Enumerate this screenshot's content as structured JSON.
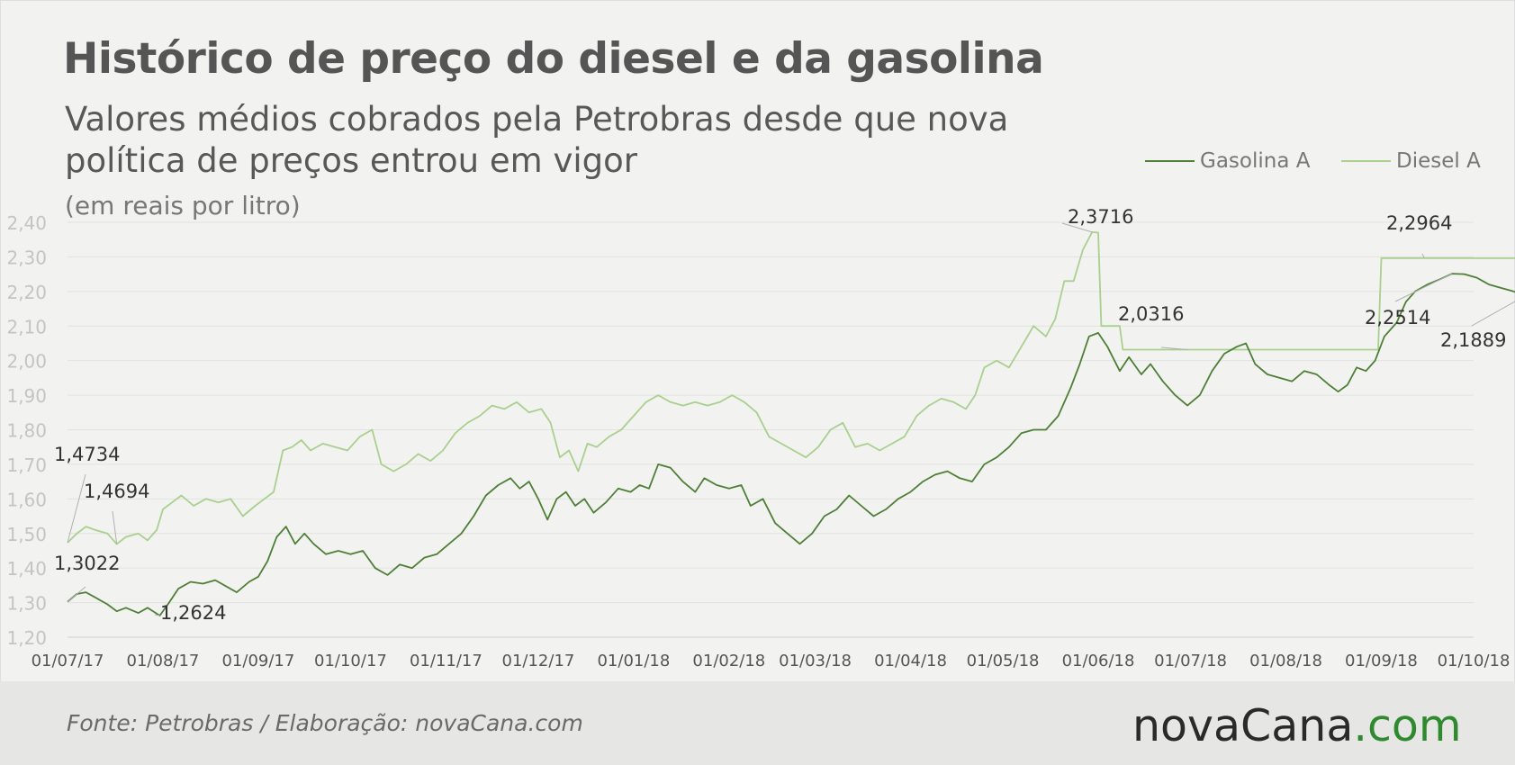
{
  "title": "Histórico de preço do diesel e da gasolina",
  "subtitle": "Valores médios cobrados pela Petrobras desde que nova política de preços entrou em vigor",
  "units": "(em reais por litro)",
  "legend": [
    {
      "label": "Gasolina A",
      "color": "#4e7f37"
    },
    {
      "label": "Diesel A",
      "color": "#a9d08e"
    }
  ],
  "footer": {
    "source": "Fonte:  Petrobras  / Elaboração:  novaCana.com",
    "logo_main": "novaCana",
    "logo_dot": ".",
    "logo_com": "com"
  },
  "chart_data": {
    "type": "line",
    "ylim": [
      1.2,
      2.4
    ],
    "yticks": [
      "2,40",
      "2,30",
      "2,20",
      "2,10",
      "2,00",
      "1,90",
      "1,80",
      "1,70",
      "1,60",
      "1,50",
      "1,40",
      "1,30",
      "1,20"
    ],
    "xticks": [
      "01/07/17",
      "01/08/17",
      "01/09/17",
      "01/10/17",
      "01/11/17",
      "01/12/17",
      "01/01/18",
      "01/02/18",
      "01/03/18",
      "01/04/18",
      "01/05/18",
      "01/06/18",
      "01/07/18",
      "01/08/18",
      "01/09/18",
      "01/10/18"
    ],
    "grid": true,
    "legend_position": "top-right",
    "series": [
      {
        "name": "Gasolina A",
        "color": "#4e7f37",
        "points": [
          [
            "2017-07-01",
            1.3022
          ],
          [
            "2017-07-04",
            1.325
          ],
          [
            "2017-07-07",
            1.33
          ],
          [
            "2017-07-10",
            1.315
          ],
          [
            "2017-07-14",
            1.295
          ],
          [
            "2017-07-17",
            1.275
          ],
          [
            "2017-07-20",
            1.285
          ],
          [
            "2017-07-24",
            1.27
          ],
          [
            "2017-07-27",
            1.285
          ],
          [
            "2017-07-31",
            1.2624
          ],
          [
            "2017-08-03",
            1.3
          ],
          [
            "2017-08-06",
            1.34
          ],
          [
            "2017-08-10",
            1.36
          ],
          [
            "2017-08-14",
            1.355
          ],
          [
            "2017-08-18",
            1.365
          ],
          [
            "2017-08-22",
            1.345
          ],
          [
            "2017-08-25",
            1.33
          ],
          [
            "2017-08-29",
            1.36
          ],
          [
            "2017-09-01",
            1.375
          ],
          [
            "2017-09-04",
            1.42
          ],
          [
            "2017-09-07",
            1.49
          ],
          [
            "2017-09-10",
            1.52
          ],
          [
            "2017-09-13",
            1.47
          ],
          [
            "2017-09-16",
            1.5
          ],
          [
            "2017-09-19",
            1.47
          ],
          [
            "2017-09-23",
            1.44
          ],
          [
            "2017-09-27",
            1.45
          ],
          [
            "2017-10-01",
            1.44
          ],
          [
            "2017-10-05",
            1.45
          ],
          [
            "2017-10-09",
            1.4
          ],
          [
            "2017-10-13",
            1.38
          ],
          [
            "2017-10-17",
            1.41
          ],
          [
            "2017-10-21",
            1.4
          ],
          [
            "2017-10-25",
            1.43
          ],
          [
            "2017-10-29",
            1.44
          ],
          [
            "2017-11-02",
            1.47
          ],
          [
            "2017-11-06",
            1.5
          ],
          [
            "2017-11-10",
            1.55
          ],
          [
            "2017-11-14",
            1.61
          ],
          [
            "2017-11-18",
            1.64
          ],
          [
            "2017-11-22",
            1.66
          ],
          [
            "2017-11-25",
            1.63
          ],
          [
            "2017-11-28",
            1.65
          ],
          [
            "2017-12-01",
            1.6
          ],
          [
            "2017-12-04",
            1.54
          ],
          [
            "2017-12-07",
            1.6
          ],
          [
            "2017-12-10",
            1.62
          ],
          [
            "2017-12-13",
            1.58
          ],
          [
            "2017-12-16",
            1.6
          ],
          [
            "2017-12-19",
            1.56
          ],
          [
            "2017-12-23",
            1.59
          ],
          [
            "2017-12-27",
            1.63
          ],
          [
            "2017-12-31",
            1.62
          ],
          [
            "2018-01-03",
            1.64
          ],
          [
            "2018-01-06",
            1.63
          ],
          [
            "2018-01-09",
            1.7
          ],
          [
            "2018-01-13",
            1.69
          ],
          [
            "2018-01-17",
            1.65
          ],
          [
            "2018-01-21",
            1.62
          ],
          [
            "2018-01-24",
            1.66
          ],
          [
            "2018-01-28",
            1.64
          ],
          [
            "2018-02-01",
            1.63
          ],
          [
            "2018-02-05",
            1.64
          ],
          [
            "2018-02-08",
            1.58
          ],
          [
            "2018-02-12",
            1.6
          ],
          [
            "2018-02-16",
            1.53
          ],
          [
            "2018-02-20",
            1.5
          ],
          [
            "2018-02-24",
            1.47
          ],
          [
            "2018-02-28",
            1.5
          ],
          [
            "2018-03-04",
            1.55
          ],
          [
            "2018-03-08",
            1.57
          ],
          [
            "2018-03-12",
            1.61
          ],
          [
            "2018-03-16",
            1.58
          ],
          [
            "2018-03-20",
            1.55
          ],
          [
            "2018-03-24",
            1.57
          ],
          [
            "2018-03-28",
            1.6
          ],
          [
            "2018-04-01",
            1.62
          ],
          [
            "2018-04-05",
            1.65
          ],
          [
            "2018-04-09",
            1.67
          ],
          [
            "2018-04-13",
            1.68
          ],
          [
            "2018-04-17",
            1.66
          ],
          [
            "2018-04-21",
            1.65
          ],
          [
            "2018-04-25",
            1.7
          ],
          [
            "2018-04-29",
            1.72
          ],
          [
            "2018-05-03",
            1.75
          ],
          [
            "2018-05-07",
            1.79
          ],
          [
            "2018-05-11",
            1.8
          ],
          [
            "2018-05-15",
            1.8
          ],
          [
            "2018-05-19",
            1.84
          ],
          [
            "2018-05-23",
            1.92
          ],
          [
            "2018-05-26",
            1.99
          ],
          [
            "2018-05-29",
            2.07
          ],
          [
            "2018-06-01",
            2.08
          ],
          [
            "2018-06-04",
            2.04
          ],
          [
            "2018-06-08",
            1.97
          ],
          [
            "2018-06-11",
            2.01
          ],
          [
            "2018-06-15",
            1.96
          ],
          [
            "2018-06-18",
            1.99
          ],
          [
            "2018-06-22",
            1.94
          ],
          [
            "2018-06-26",
            1.9
          ],
          [
            "2018-06-30",
            1.87
          ],
          [
            "2018-07-04",
            1.9
          ],
          [
            "2018-07-08",
            1.97
          ],
          [
            "2018-07-12",
            2.02
          ],
          [
            "2018-07-16",
            2.04
          ],
          [
            "2018-07-19",
            2.05
          ],
          [
            "2018-07-22",
            1.99
          ],
          [
            "2018-07-26",
            1.96
          ],
          [
            "2018-07-30",
            1.95
          ],
          [
            "2018-08-03",
            1.94
          ],
          [
            "2018-08-07",
            1.97
          ],
          [
            "2018-08-11",
            1.96
          ],
          [
            "2018-08-15",
            1.93
          ],
          [
            "2018-08-18",
            1.91
          ],
          [
            "2018-08-21",
            1.93
          ],
          [
            "2018-08-24",
            1.98
          ],
          [
            "2018-08-27",
            1.97
          ],
          [
            "2018-08-30",
            2.0
          ],
          [
            "2018-09-02",
            2.07
          ],
          [
            "2018-09-06",
            2.11
          ],
          [
            "2018-09-09",
            2.17
          ],
          [
            "2018-09-12",
            2.2
          ],
          [
            "2018-09-16",
            2.22
          ],
          [
            "2018-09-20",
            2.235
          ],
          [
            "2018-09-24",
            2.2514
          ],
          [
            "2018-09-28",
            2.25
          ],
          [
            "2018-10-02",
            2.24
          ],
          [
            "2018-10-06",
            2.22
          ],
          [
            "2018-10-10",
            2.21
          ],
          [
            "2018-10-14",
            2.2
          ],
          [
            "2018-10-18",
            2.1889
          ]
        ]
      },
      {
        "name": "Diesel A",
        "color": "#a9d08e",
        "points": [
          [
            "2017-07-01",
            1.4734
          ],
          [
            "2017-07-04",
            1.5
          ],
          [
            "2017-07-07",
            1.52
          ],
          [
            "2017-07-10",
            1.51
          ],
          [
            "2017-07-14",
            1.5
          ],
          [
            "2017-07-17",
            1.4694
          ],
          [
            "2017-07-20",
            1.49
          ],
          [
            "2017-07-24",
            1.5
          ],
          [
            "2017-07-27",
            1.48
          ],
          [
            "2017-07-30",
            1.51
          ],
          [
            "2017-08-01",
            1.57
          ],
          [
            "2017-08-04",
            1.59
          ],
          [
            "2017-08-07",
            1.61
          ],
          [
            "2017-08-11",
            1.58
          ],
          [
            "2017-08-15",
            1.6
          ],
          [
            "2017-08-19",
            1.59
          ],
          [
            "2017-08-23",
            1.6
          ],
          [
            "2017-08-27",
            1.55
          ],
          [
            "2017-08-31",
            1.58
          ],
          [
            "2017-09-03",
            1.6
          ],
          [
            "2017-09-06",
            1.62
          ],
          [
            "2017-09-09",
            1.74
          ],
          [
            "2017-09-12",
            1.75
          ],
          [
            "2017-09-15",
            1.77
          ],
          [
            "2017-09-18",
            1.74
          ],
          [
            "2017-09-22",
            1.76
          ],
          [
            "2017-09-26",
            1.75
          ],
          [
            "2017-09-30",
            1.74
          ],
          [
            "2017-10-04",
            1.78
          ],
          [
            "2017-10-08",
            1.8
          ],
          [
            "2017-10-11",
            1.7
          ],
          [
            "2017-10-15",
            1.68
          ],
          [
            "2017-10-19",
            1.7
          ],
          [
            "2017-10-23",
            1.73
          ],
          [
            "2017-10-27",
            1.71
          ],
          [
            "2017-10-31",
            1.74
          ],
          [
            "2017-11-04",
            1.79
          ],
          [
            "2017-11-08",
            1.82
          ],
          [
            "2017-11-12",
            1.84
          ],
          [
            "2017-11-16",
            1.87
          ],
          [
            "2017-11-20",
            1.86
          ],
          [
            "2017-11-24",
            1.88
          ],
          [
            "2017-11-28",
            1.85
          ],
          [
            "2017-12-02",
            1.86
          ],
          [
            "2017-12-05",
            1.82
          ],
          [
            "2017-12-08",
            1.72
          ],
          [
            "2017-12-11",
            1.74
          ],
          [
            "2017-12-14",
            1.68
          ],
          [
            "2017-12-17",
            1.76
          ],
          [
            "2017-12-20",
            1.75
          ],
          [
            "2017-12-24",
            1.78
          ],
          [
            "2017-12-28",
            1.8
          ],
          [
            "2018-01-01",
            1.84
          ],
          [
            "2018-01-05",
            1.88
          ],
          [
            "2018-01-09",
            1.9
          ],
          [
            "2018-01-13",
            1.88
          ],
          [
            "2018-01-17",
            1.87
          ],
          [
            "2018-01-21",
            1.88
          ],
          [
            "2018-01-25",
            1.87
          ],
          [
            "2018-01-29",
            1.88
          ],
          [
            "2018-02-02",
            1.9
          ],
          [
            "2018-02-06",
            1.88
          ],
          [
            "2018-02-10",
            1.85
          ],
          [
            "2018-02-14",
            1.78
          ],
          [
            "2018-02-18",
            1.76
          ],
          [
            "2018-02-22",
            1.74
          ],
          [
            "2018-02-26",
            1.72
          ],
          [
            "2018-03-02",
            1.75
          ],
          [
            "2018-03-06",
            1.8
          ],
          [
            "2018-03-10",
            1.82
          ],
          [
            "2018-03-14",
            1.75
          ],
          [
            "2018-03-18",
            1.76
          ],
          [
            "2018-03-22",
            1.74
          ],
          [
            "2018-03-26",
            1.76
          ],
          [
            "2018-03-30",
            1.78
          ],
          [
            "2018-04-03",
            1.84
          ],
          [
            "2018-04-07",
            1.87
          ],
          [
            "2018-04-11",
            1.89
          ],
          [
            "2018-04-15",
            1.88
          ],
          [
            "2018-04-19",
            1.86
          ],
          [
            "2018-04-22",
            1.9
          ],
          [
            "2018-04-25",
            1.98
          ],
          [
            "2018-04-29",
            2.0
          ],
          [
            "2018-05-03",
            1.98
          ],
          [
            "2018-05-07",
            2.04
          ],
          [
            "2018-05-11",
            2.1
          ],
          [
            "2018-05-15",
            2.07
          ],
          [
            "2018-05-18",
            2.12
          ],
          [
            "2018-05-21",
            2.23
          ],
          [
            "2018-05-24",
            2.23
          ],
          [
            "2018-05-27",
            2.32
          ],
          [
            "2018-05-30",
            2.3716
          ],
          [
            "2018-06-01",
            2.37
          ],
          [
            "2018-06-02",
            2.1
          ],
          [
            "2018-06-08",
            2.1
          ],
          [
            "2018-06-09",
            2.0316
          ],
          [
            "2018-08-31",
            2.0316
          ],
          [
            "2018-09-01",
            2.2964
          ],
          [
            "2018-10-18",
            2.2964
          ]
        ]
      }
    ],
    "annotations": [
      {
        "text": "1,4734",
        "series": "Diesel A",
        "date": "2017-07-01",
        "value": 1.4734
      },
      {
        "text": "1,4694",
        "series": "Diesel A",
        "date": "2017-07-17",
        "value": 1.4694
      },
      {
        "text": "1,3022",
        "series": "Gasolina A",
        "date": "2017-07-01",
        "value": 1.3022
      },
      {
        "text": "1,2624",
        "series": "Gasolina A",
        "date": "2017-07-31",
        "value": 1.2624
      },
      {
        "text": "2,3716",
        "series": "Diesel A",
        "date": "2018-05-30",
        "value": 2.3716
      },
      {
        "text": "2,0316",
        "series": "Diesel A",
        "date": "2018-06-30",
        "value": 2.0316
      },
      {
        "text": "2,2964",
        "series": "Diesel A",
        "date": "2018-09-15",
        "value": 2.2964
      },
      {
        "text": "2,2514",
        "series": "Gasolina A",
        "date": "2018-09-24",
        "value": 2.2514
      },
      {
        "text": "2,1889",
        "series": "Gasolina A",
        "date": "2018-10-18",
        "value": 2.1889
      }
    ]
  }
}
